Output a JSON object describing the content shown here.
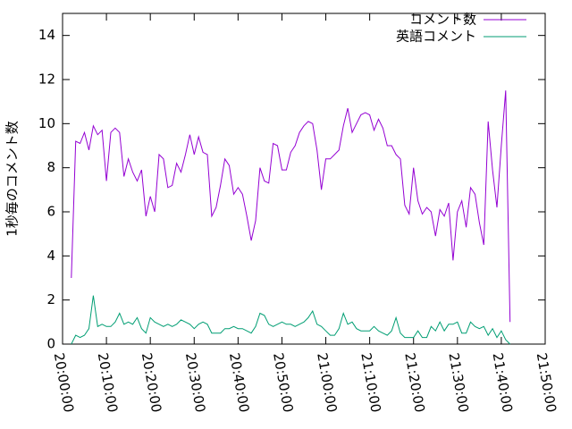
{
  "chart_data": {
    "type": "line",
    "ylabel": "1秒毎のコメント数",
    "x": [
      "20:02:00",
      "20:03:00",
      "20:04:00",
      "20:05:00",
      "20:06:00",
      "20:07:00",
      "20:08:00",
      "20:09:00",
      "20:10:00",
      "20:11:00",
      "20:12:00",
      "20:13:00",
      "20:14:00",
      "20:15:00",
      "20:16:00",
      "20:17:00",
      "20:18:00",
      "20:19:00",
      "20:20:00",
      "20:21:00",
      "20:22:00",
      "20:23:00",
      "20:24:00",
      "20:25:00",
      "20:26:00",
      "20:27:00",
      "20:28:00",
      "20:29:00",
      "20:30:00",
      "20:31:00",
      "20:32:00",
      "20:33:00",
      "20:34:00",
      "20:35:00",
      "20:36:00",
      "20:37:00",
      "20:38:00",
      "20:39:00",
      "20:40:00",
      "20:41:00",
      "20:42:00",
      "20:43:00",
      "20:44:00",
      "20:45:00",
      "20:46:00",
      "20:47:00",
      "20:48:00",
      "20:49:00",
      "20:50:00",
      "20:51:00",
      "20:52:00",
      "20:53:00",
      "20:54:00",
      "20:55:00",
      "20:56:00",
      "20:57:00",
      "20:58:00",
      "20:59:00",
      "21:00:00",
      "21:01:00",
      "21:02:00",
      "21:03:00",
      "21:04:00",
      "21:05:00",
      "21:06:00",
      "21:07:00",
      "21:08:00",
      "21:09:00",
      "21:10:00",
      "21:11:00",
      "21:12:00",
      "21:13:00",
      "21:14:00",
      "21:15:00",
      "21:16:00",
      "21:17:00",
      "21:18:00",
      "21:19:00",
      "21:20:00",
      "21:21:00",
      "21:22:00",
      "21:23:00",
      "21:24:00",
      "21:25:00",
      "21:26:00",
      "21:27:00",
      "21:28:00",
      "21:29:00",
      "21:30:00",
      "21:31:00",
      "21:32:00",
      "21:33:00",
      "21:34:00",
      "21:35:00",
      "21:36:00",
      "21:37:00",
      "21:38:00",
      "21:39:00",
      "21:40:00",
      "21:41:00",
      "21:42:00"
    ],
    "series": [
      {
        "name": "コメント数",
        "color": "#9400d3",
        "values": [
          3.0,
          9.2,
          9.1,
          9.6,
          8.8,
          9.9,
          9.5,
          9.7,
          7.4,
          9.6,
          9.8,
          9.6,
          7.6,
          8.4,
          7.8,
          7.4,
          7.9,
          5.8,
          6.7,
          6.0,
          8.6,
          8.4,
          7.1,
          7.2,
          8.2,
          7.8,
          8.6,
          9.5,
          8.6,
          9.4,
          8.7,
          8.6,
          5.8,
          6.2,
          7.2,
          8.4,
          8.1,
          6.8,
          7.1,
          6.8,
          5.8,
          4.7,
          5.6,
          8.0,
          7.4,
          7.3,
          9.1,
          9.0,
          7.9,
          7.9,
          8.7,
          9.0,
          9.6,
          9.9,
          10.1,
          10.0,
          8.8,
          7.0,
          8.4,
          8.4,
          8.6,
          8.8,
          9.9,
          10.7,
          9.6,
          10.0,
          10.4,
          10.5,
          10.4,
          9.7,
          10.2,
          9.8,
          9.0,
          9.0,
          8.6,
          8.4,
          6.3,
          5.9,
          8.0,
          6.5,
          5.9,
          6.2,
          6.0,
          4.9,
          6.1,
          5.8,
          6.4,
          3.8,
          6.0,
          6.5,
          5.3,
          7.1,
          6.8,
          5.5,
          4.5,
          10.1,
          7.9,
          6.2,
          9.0,
          11.5,
          1.0
        ]
      },
      {
        "name": "英語コメント",
        "color": "#009e73",
        "values": [
          0.0,
          0.4,
          0.3,
          0.4,
          0.7,
          2.2,
          0.8,
          0.9,
          0.8,
          0.8,
          1.0,
          1.4,
          0.9,
          1.0,
          0.9,
          1.2,
          0.7,
          0.5,
          1.2,
          1.0,
          0.9,
          0.8,
          0.9,
          0.8,
          0.9,
          1.1,
          1.0,
          0.9,
          0.7,
          0.9,
          1.0,
          0.9,
          0.5,
          0.5,
          0.5,
          0.7,
          0.7,
          0.8,
          0.7,
          0.7,
          0.6,
          0.5,
          0.8,
          1.4,
          1.3,
          0.9,
          0.8,
          0.9,
          1.0,
          0.9,
          0.9,
          0.8,
          0.9,
          1.0,
          1.2,
          1.5,
          0.9,
          0.8,
          0.6,
          0.4,
          0.4,
          0.7,
          1.4,
          0.9,
          1.0,
          0.7,
          0.6,
          0.6,
          0.6,
          0.8,
          0.6,
          0.5,
          0.4,
          0.6,
          1.2,
          0.5,
          0.3,
          0.3,
          0.3,
          0.6,
          0.3,
          0.3,
          0.8,
          0.6,
          1.0,
          0.6,
          0.9,
          0.9,
          1.0,
          0.5,
          0.5,
          1.0,
          0.8,
          0.7,
          0.8,
          0.4,
          0.7,
          0.3,
          0.6,
          0.2,
          0.0
        ]
      }
    ],
    "xlim": [
      "20:00:00",
      "21:50:00"
    ],
    "xticks": [
      "20:00:00",
      "20:10:00",
      "20:20:00",
      "20:30:00",
      "20:40:00",
      "20:50:00",
      "21:00:00",
      "21:10:00",
      "21:20:00",
      "21:30:00",
      "21:40:00",
      "21:50:00"
    ],
    "ylim": [
      0,
      15
    ],
    "yticks": [
      0,
      2,
      4,
      6,
      8,
      10,
      12,
      14
    ],
    "legend": "top-right"
  }
}
